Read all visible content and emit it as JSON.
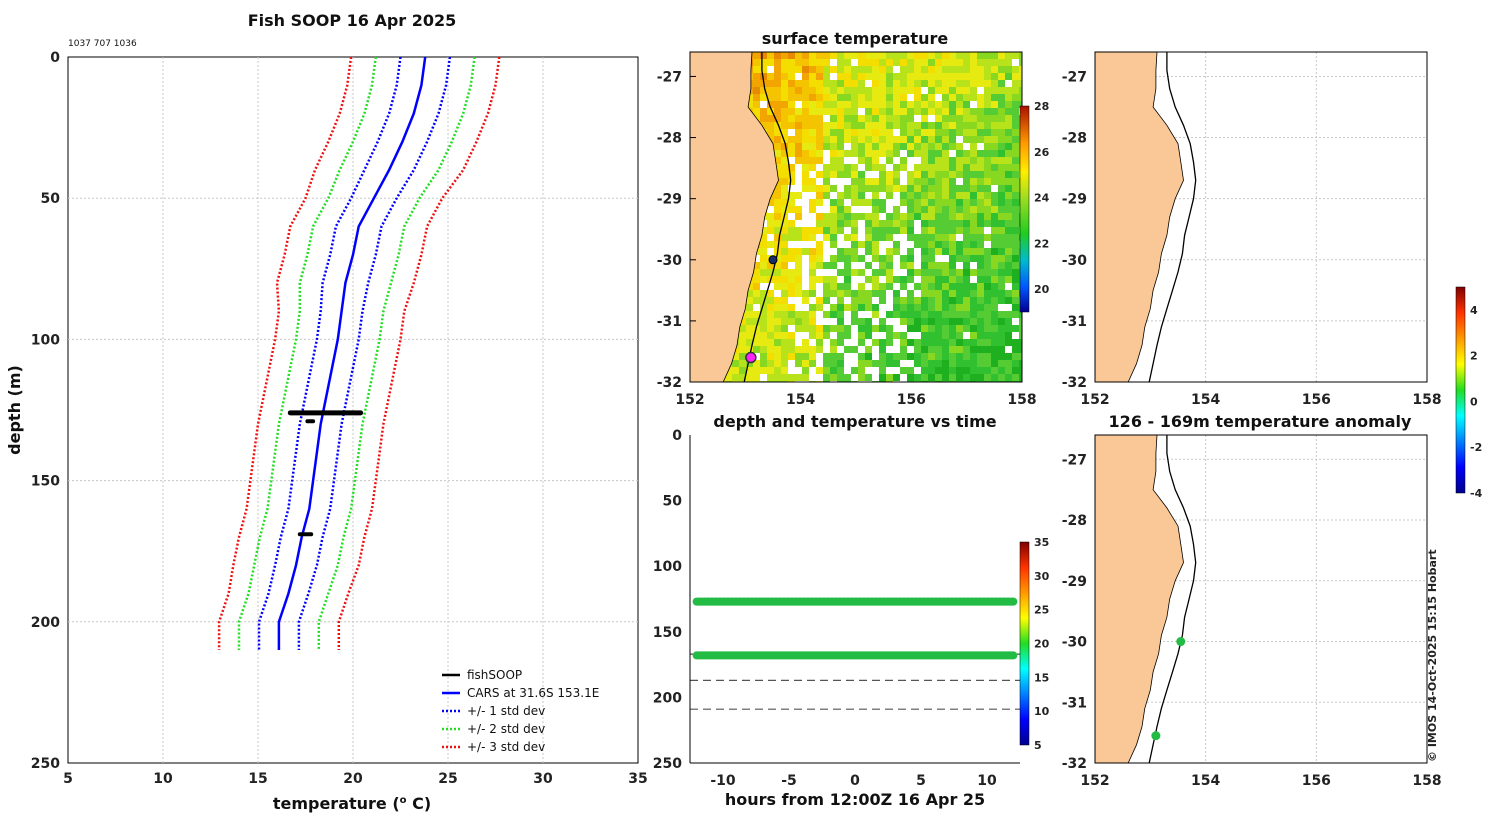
{
  "figure": {
    "title": "Fish SOOP 16 Apr 2025",
    "id_text": "1037 707 1036",
    "credit": "© IMOS 14-Oct-2025 15:15 Hobart"
  },
  "colors": {
    "land": "#f9c896",
    "fish": "#000000",
    "cars": "#0000ff",
    "std1": "#0000ff",
    "std2": "#22dd22",
    "std3": "#ee1111",
    "band": "#22bb44",
    "magenta": "#ff22ff",
    "navy": "#1a2a6a"
  },
  "chart_data": [
    {
      "type": "line",
      "title": "Fish SOOP 16 Apr 2025",
      "xlabel": "temperature (o C)",
      "ylabel": "depth (m)",
      "xlim": [
        5,
        35
      ],
      "ylim": [
        250,
        0
      ],
      "xticks": [
        5,
        10,
        15,
        20,
        25,
        30,
        35
      ],
      "yticks": [
        0,
        50,
        100,
        150,
        200,
        250
      ],
      "grid": true,
      "legend_position": "bottom-right",
      "legend": [
        "fishSOOP",
        "CARS at 31.6S 153.1E",
        "+/- 1 std dev",
        "+/- 2 std dev",
        "+/- 3 std dev"
      ],
      "depth": [
        0,
        10,
        20,
        30,
        40,
        50,
        60,
        70,
        80,
        90,
        100,
        110,
        120,
        130,
        140,
        150,
        160,
        170,
        180,
        190,
        200,
        210
      ],
      "cars": [
        23.8,
        23.6,
        23.2,
        22.6,
        21.9,
        21.1,
        20.3,
        20.0,
        19.6,
        19.4,
        19.2,
        18.9,
        18.6,
        18.3,
        18.1,
        17.9,
        17.7,
        17.3,
        17.0,
        16.6,
        16.1,
        16.1
      ],
      "std": [
        1.3,
        1.3,
        1.3,
        1.3,
        1.3,
        1.2,
        1.2,
        1.2,
        1.2,
        1.1,
        1.1,
        1.1,
        1.1,
        1.1,
        1.1,
        1.1,
        1.1,
        1.1,
        1.1,
        1.05,
        1.05,
        1.05
      ],
      "fishsoop": [
        {
          "depth": 126,
          "t_min": 16.7,
          "t_max": 20.4
        },
        {
          "depth": 129,
          "t_min": 17.6,
          "t_max": 17.9
        },
        {
          "depth": 169,
          "t_min": 17.2,
          "t_max": 17.8
        }
      ]
    },
    {
      "type": "heatmap",
      "title": "surface temperature",
      "xlim": [
        152,
        158
      ],
      "ylim": [
        -32,
        -26.6
      ],
      "xticks": [
        152,
        154,
        156,
        158
      ],
      "yticks": [
        -27,
        -28,
        -29,
        -30,
        -31,
        -32
      ],
      "colorbar": {
        "min": 19,
        "max": 28,
        "ticks": [
          20,
          22,
          24,
          26,
          28
        ]
      },
      "markers": [
        {
          "label": "navy point",
          "lon": 153.5,
          "lat": -30.0
        },
        {
          "label": "magenta point",
          "lon": 153.1,
          "lat": -31.6
        }
      ]
    },
    {
      "type": "scatter",
      "title": "",
      "xlim": [
        152,
        158
      ],
      "ylim": [
        -32,
        -26.6
      ],
      "xticks": [
        152,
        154,
        156,
        158
      ],
      "yticks": [
        -27,
        -28,
        -29,
        -30,
        -31,
        -32
      ],
      "colorbar": {
        "min": -4,
        "max": 5,
        "ticks": [
          -4,
          -2,
          0,
          2,
          4
        ]
      }
    },
    {
      "type": "scatter",
      "title": "depth and temperature vs time",
      "xlabel": "hours from 12:00Z 16 Apr 25",
      "xlim": [
        -12.5,
        12.5
      ],
      "ylim": [
        250,
        0
      ],
      "xticks": [
        -10,
        -5,
        0,
        5,
        10
      ],
      "yticks": [
        0,
        50,
        100,
        150,
        200,
        250
      ],
      "colorbar": {
        "min": 5,
        "max": 35,
        "ticks": [
          5,
          10,
          15,
          20,
          25,
          30,
          35
        ]
      },
      "bands": [
        {
          "depth": 127,
          "t_from": -12,
          "t_to": 12,
          "temperature": 20
        },
        {
          "depth": 168,
          "t_from": -12,
          "t_to": 12,
          "temperature": 20
        }
      ],
      "reference_depths": [
        167,
        187,
        209
      ]
    },
    {
      "type": "scatter",
      "title": "126 - 169m temperature anomaly",
      "xlim": [
        152,
        158
      ],
      "ylim": [
        -32,
        -26.6
      ],
      "xticks": [
        152,
        154,
        156,
        158
      ],
      "yticks": [
        -27,
        -28,
        -29,
        -30,
        -31,
        -32
      ],
      "points": [
        {
          "lon": 153.55,
          "lat": -30.0,
          "anomaly": 0.3
        },
        {
          "lon": 153.1,
          "lat": -31.55,
          "anomaly": 0.3
        }
      ]
    }
  ]
}
